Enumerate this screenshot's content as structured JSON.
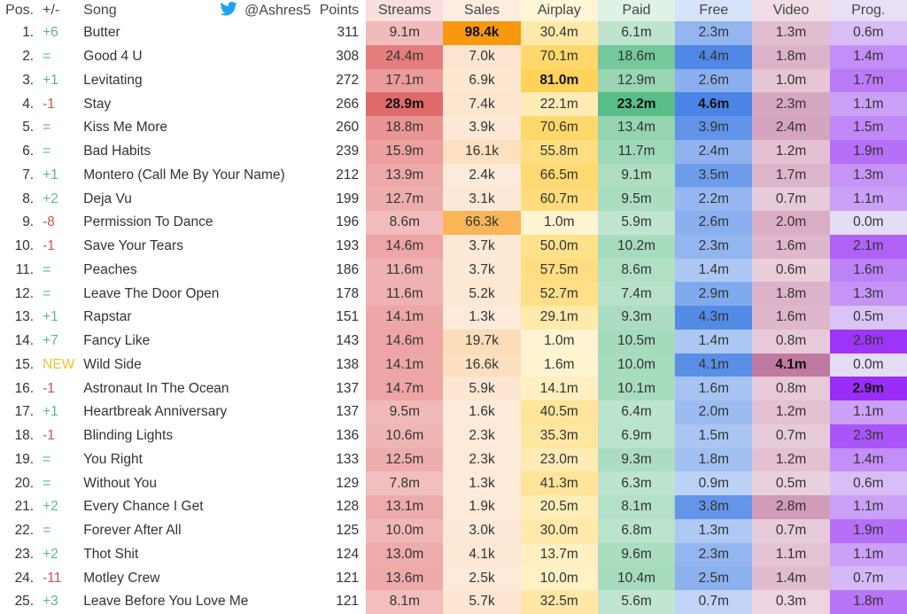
{
  "header": {
    "pos": "Pos.",
    "change": "+/-",
    "song": "Song",
    "twitter_handle": "@Ashres5",
    "points": "Points",
    "metrics": [
      "Streams",
      "Sales",
      "Airplay",
      "Paid",
      "Free",
      "Video",
      "Prog."
    ]
  },
  "colors": {
    "up": "#5cb88a",
    "down": "#d05050",
    "new": "#f1c232",
    "twitter": "#1da1f2"
  },
  "metric_colors": [
    [
      "#f8dada",
      "#e06a6a",
      "#f8dada"
    ],
    [
      "#fdebdc",
      "#f7980f",
      "#fdebdc"
    ],
    [
      "#fff4d2",
      "#ffd35a",
      "#fff4d2"
    ],
    [
      "#ddf0e3",
      "#58bd88",
      "#ddf0e3"
    ],
    [
      "#d2e0f9",
      "#4a84e6",
      "#d2e0f9"
    ],
    [
      "#efd9e4",
      "#c07aa0",
      "#efd9e4"
    ],
    [
      "#e5dcf6",
      "#9a2ef8",
      "#e5dcf6"
    ]
  ],
  "rows": [
    {
      "pos": "1.",
      "change": "+6",
      "song": "Butter",
      "points": "311",
      "m": [
        "9.1m",
        "98.4k",
        "30.4m",
        "6.1m",
        "2.3m",
        "1.3m",
        "0.6m"
      ]
    },
    {
      "pos": "2.",
      "change": "=",
      "song": "Good 4 U",
      "points": "308",
      "m": [
        "24.4m",
        "7.0k",
        "70.1m",
        "18.6m",
        "4.4m",
        "1.8m",
        "1.4m"
      ]
    },
    {
      "pos": "3.",
      "change": "+1",
      "song": "Levitating",
      "points": "272",
      "m": [
        "17.1m",
        "6.9k",
        "81.0m",
        "12.9m",
        "2.6m",
        "1.0m",
        "1.7m"
      ]
    },
    {
      "pos": "4.",
      "change": "-1",
      "song": "Stay",
      "points": "266",
      "m": [
        "28.9m",
        "7.4k",
        "22.1m",
        "23.2m",
        "4.6m",
        "2.3m",
        "1.1m"
      ]
    },
    {
      "pos": "5.",
      "change": "=",
      "song": "Kiss Me More",
      "points": "260",
      "m": [
        "18.8m",
        "3.9k",
        "70.6m",
        "13.4m",
        "3.9m",
        "2.4m",
        "1.5m"
      ]
    },
    {
      "pos": "6.",
      "change": "=",
      "song": "Bad Habits",
      "points": "239",
      "m": [
        "15.9m",
        "16.1k",
        "55.8m",
        "11.7m",
        "2.4m",
        "1.2m",
        "1.9m"
      ]
    },
    {
      "pos": "7.",
      "change": "+1",
      "song": "Montero (Call Me By Your Name)",
      "points": "212",
      "m": [
        "13.9m",
        "2.4k",
        "66.5m",
        "9.1m",
        "3.5m",
        "1.7m",
        "1.3m"
      ]
    },
    {
      "pos": "8.",
      "change": "+2",
      "song": "Deja Vu",
      "points": "199",
      "m": [
        "12.7m",
        "3.1k",
        "60.7m",
        "9.5m",
        "2.2m",
        "0.7m",
        "1.1m"
      ]
    },
    {
      "pos": "9.",
      "change": "-8",
      "song": "Permission To Dance",
      "points": "196",
      "m": [
        "8.6m",
        "66.3k",
        "1.0m",
        "5.9m",
        "2.6m",
        "2.0m",
        "0.0m"
      ]
    },
    {
      "pos": "10.",
      "change": "-1",
      "song": "Save Your Tears",
      "points": "193",
      "m": [
        "14.6m",
        "3.7k",
        "50.0m",
        "10.2m",
        "2.3m",
        "1.6m",
        "2.1m"
      ]
    },
    {
      "pos": "11.",
      "change": "=",
      "song": "Peaches",
      "points": "186",
      "m": [
        "11.6m",
        "3.7k",
        "57.5m",
        "8.6m",
        "1.4m",
        "0.6m",
        "1.6m"
      ]
    },
    {
      "pos": "12.",
      "change": "=",
      "song": "Leave The Door Open",
      "points": "178",
      "m": [
        "11.6m",
        "5.2k",
        "52.7m",
        "7.4m",
        "2.9m",
        "1.8m",
        "1.3m"
      ]
    },
    {
      "pos": "13.",
      "change": "+1",
      "song": "Rapstar",
      "points": "151",
      "m": [
        "14.1m",
        "1.3k",
        "29.1m",
        "9.3m",
        "4.3m",
        "1.6m",
        "0.5m"
      ]
    },
    {
      "pos": "14.",
      "change": "+7",
      "song": "Fancy Like",
      "points": "143",
      "m": [
        "14.6m",
        "19.7k",
        "1.0m",
        "10.5m",
        "1.4m",
        "0.8m",
        "2.8m"
      ]
    },
    {
      "pos": "15.",
      "change": "NEW",
      "song": "Wild Side",
      "points": "138",
      "m": [
        "14.1m",
        "16.6k",
        "1.6m",
        "10.0m",
        "4.1m",
        "4.1m",
        "0.0m"
      ]
    },
    {
      "pos": "16.",
      "change": "-1",
      "song": "Astronaut In The Ocean",
      "points": "137",
      "m": [
        "14.7m",
        "5.9k",
        "14.1m",
        "10.1m",
        "1.6m",
        "0.8m",
        "2.9m"
      ]
    },
    {
      "pos": "17.",
      "change": "+1",
      "song": "Heartbreak Anniversary",
      "points": "137",
      "m": [
        "9.5m",
        "1.6k",
        "40.5m",
        "6.4m",
        "2.0m",
        "1.2m",
        "1.1m"
      ]
    },
    {
      "pos": "18.",
      "change": "-1",
      "song": "Blinding Lights",
      "points": "136",
      "m": [
        "10.6m",
        "2.3k",
        "35.3m",
        "6.9m",
        "1.5m",
        "0.7m",
        "2.3m"
      ]
    },
    {
      "pos": "19.",
      "change": "=",
      "song": "You Right",
      "points": "133",
      "m": [
        "12.5m",
        "2.3k",
        "23.0m",
        "9.3m",
        "1.8m",
        "1.2m",
        "1.4m"
      ]
    },
    {
      "pos": "20.",
      "change": "=",
      "song": "Without You",
      "points": "129",
      "m": [
        "7.8m",
        "1.3k",
        "41.3m",
        "6.3m",
        "0.9m",
        "0.5m",
        "0.6m"
      ]
    },
    {
      "pos": "21.",
      "change": "+2",
      "song": "Every Chance I Get",
      "points": "128",
      "m": [
        "13.1m",
        "1.9k",
        "20.5m",
        "8.1m",
        "3.8m",
        "2.8m",
        "1.1m"
      ]
    },
    {
      "pos": "22.",
      "change": "=",
      "song": "Forever After All",
      "points": "125",
      "m": [
        "10.0m",
        "3.0k",
        "30.0m",
        "6.8m",
        "1.3m",
        "0.7m",
        "1.9m"
      ]
    },
    {
      "pos": "23.",
      "change": "+2",
      "song": "Thot Shit",
      "points": "124",
      "m": [
        "13.0m",
        "4.1k",
        "13.7m",
        "9.6m",
        "2.3m",
        "1.1m",
        "1.1m"
      ]
    },
    {
      "pos": "24.",
      "change": "-11",
      "song": "Motley Crew",
      "points": "121",
      "m": [
        "13.6m",
        "2.5k",
        "10.0m",
        "10.4m",
        "2.5m",
        "1.4m",
        "0.7m"
      ]
    },
    {
      "pos": "25.",
      "change": "+3",
      "song": "Leave Before You Love Me",
      "points": "121",
      "m": [
        "8.1m",
        "5.7k",
        "32.5m",
        "5.6m",
        "0.7m",
        "0.3m",
        "1.8m"
      ]
    }
  ]
}
